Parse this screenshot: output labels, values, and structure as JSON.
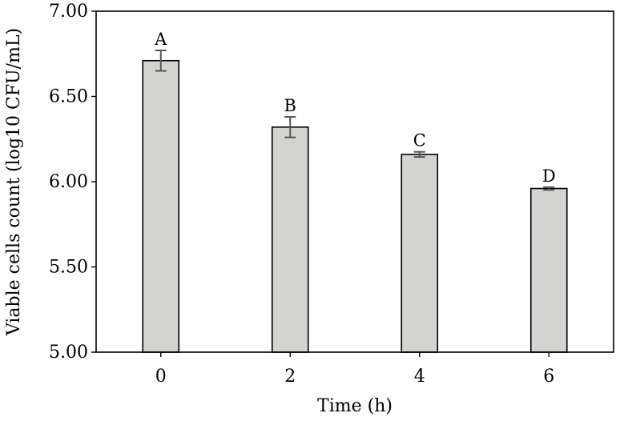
{
  "chart_data": {
    "type": "bar",
    "xlabel": "Time (h)",
    "ylabel": "Viable cells count (log10 CFU/mL)",
    "ylim": [
      5.0,
      7.0
    ],
    "yticks": [
      "5.00",
      "5.50",
      "6.00",
      "6.50",
      "7.00"
    ],
    "categories": [
      "0",
      "2",
      "4",
      "6"
    ],
    "values": [
      6.71,
      6.32,
      6.16,
      5.96
    ],
    "errors": [
      0.06,
      0.06,
      0.015,
      0.008
    ],
    "significance_letters": [
      "A",
      "B",
      "C",
      "D"
    ],
    "grid": false,
    "bar_color": "#d3d3d1",
    "bar_edge_color": "#000000",
    "errorbar_color": "#555555"
  }
}
